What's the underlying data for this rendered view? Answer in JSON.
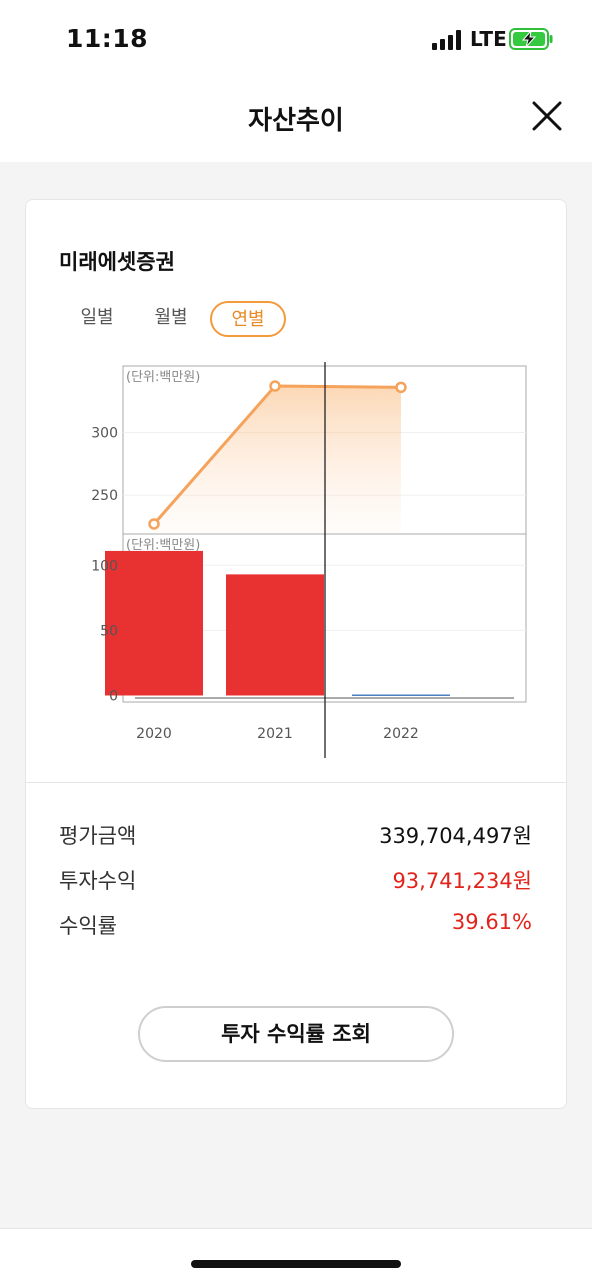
{
  "status_bar": {
    "time": "11:18",
    "network": "LTE"
  },
  "header": {
    "title": "자산추이"
  },
  "card": {
    "company": "미래에셋증권",
    "tabs": [
      {
        "label": "일별",
        "active": false
      },
      {
        "label": "월별",
        "active": false
      },
      {
        "label": "연별",
        "active": true
      }
    ]
  },
  "chart_data": [
    {
      "type": "line",
      "unit_label": "(단위:백만원)",
      "x": [
        "2020",
        "2021",
        "2022"
      ],
      "series": [
        {
          "values": [
            227,
            337,
            336
          ]
        }
      ],
      "yticks": [
        250,
        300
      ],
      "ylim": [
        219,
        353
      ],
      "line_color": "#f5a25a",
      "grid": true
    },
    {
      "type": "bar",
      "unit_label": "(단위:백만원)",
      "categories": [
        "2020",
        "2021",
        "2022"
      ],
      "values": [
        111,
        93,
        0
      ],
      "yticks": [
        0,
        50,
        100
      ],
      "ylim": [
        -5,
        124
      ],
      "bar_color": "#e83232",
      "xticks": [
        "2020",
        "2021",
        "2022"
      ],
      "grid": true
    }
  ],
  "summary": [
    {
      "label": "평가금액",
      "value": "339,704,497원",
      "color": "#111111"
    },
    {
      "label": "투자수익",
      "value": "93,741,234원",
      "color": "#e2231a"
    },
    {
      "label": "수익률",
      "value": "39.61%",
      "color": "#e2231a"
    }
  ],
  "actions": {
    "query_label": "투자 수익률 조회"
  }
}
